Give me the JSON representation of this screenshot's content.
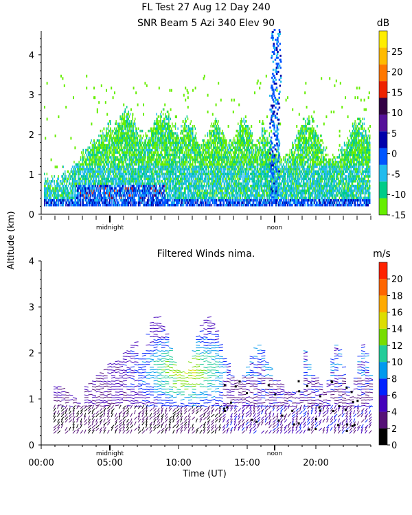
{
  "title_line1": "FL Test  27 Aug 12 Day 240",
  "chart_data": [
    {
      "type": "heatmap",
      "title": "SNR Beam 5 Azi 340 Elev 90",
      "ylabel": "Altitude (km)",
      "xlim": [
        0,
        24
      ],
      "ylim": [
        0,
        4.6
      ],
      "y_ticks": [
        0,
        1,
        2,
        3,
        4
      ],
      "markers": [
        {
          "label": "midnight",
          "x": 5.0
        },
        {
          "label": "noon",
          "x": 17.0
        }
      ],
      "colorbar": {
        "unit": "dB",
        "ticks": [
          -15,
          -10,
          -5,
          0,
          5,
          10,
          15,
          20,
          25
        ],
        "range": [
          -15,
          30
        ],
        "colors": [
          "#66ee00",
          "#00cc88",
          "#22bbee",
          "#0055ff",
          "#0000aa",
          "#551199",
          "#330044",
          "#ee2200",
          "#ff7700",
          "#ffbb00",
          "#ffee00"
        ]
      }
    },
    {
      "type": "scatter",
      "title": "Filtered Winds nima.",
      "xlabel": "Time (UT)",
      "xlim": [
        0,
        24
      ],
      "ylim": [
        0,
        4.0
      ],
      "x_ticks": [
        {
          "v": 0,
          "label": "00:00"
        },
        {
          "v": 5,
          "label": "05:00"
        },
        {
          "v": 10,
          "label": "10:00"
        },
        {
          "v": 15,
          "label": "15:00"
        },
        {
          "v": 20,
          "label": "20:00"
        }
      ],
      "y_ticks": [
        0,
        1,
        2,
        3,
        4
      ],
      "markers": [
        {
          "label": "midnight",
          "x": 5.0
        },
        {
          "label": "noon",
          "x": 17.0
        }
      ],
      "colorbar": {
        "unit": "m/s",
        "ticks": [
          0,
          2,
          4,
          6,
          8,
          10,
          12,
          14,
          16,
          18,
          20
        ],
        "range": [
          0,
          22
        ],
        "colors": [
          "#000000",
          "#551177",
          "#4400bb",
          "#0022ff",
          "#0099ee",
          "#22cc99",
          "#77dd00",
          "#dddd00",
          "#ffaa00",
          "#ff6600",
          "#ff2200"
        ]
      }
    }
  ]
}
